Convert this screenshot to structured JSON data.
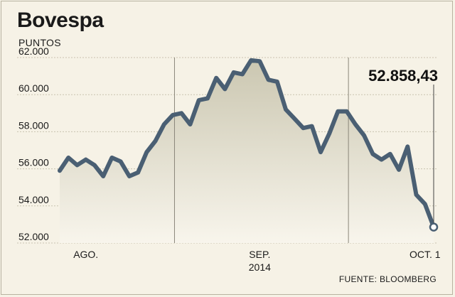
{
  "chart_data": {
    "type": "area",
    "title": "Bovespa",
    "ylabel": "PUNTOS",
    "source": "FUENTE: BLOOMBERG",
    "ylim": [
      52000,
      62000
    ],
    "yticks": [
      52000,
      54000,
      56000,
      58000,
      60000,
      62000
    ],
    "ytick_labels": [
      "52.000",
      "54.000",
      "56.000",
      "58.000",
      "60.000",
      "62.000"
    ],
    "x_labels": [
      {
        "text": "AGO.",
        "index": 3
      },
      {
        "text": "SEP.",
        "index": 23
      },
      {
        "text": "2014",
        "index": 23
      },
      {
        "text": "OCT. 1",
        "index": 42
      }
    ],
    "month_dividers": [
      13.2,
      33.2
    ],
    "last_value_label": "52.858,43",
    "grid": true,
    "colors": {
      "line": "#4a5f73",
      "fill_top": "#cfcbb6",
      "fill_bottom": "#f6f2e6",
      "grid": "#c9c3b0",
      "divider": "#8a867a"
    },
    "values": [
      55900,
      56600,
      56200,
      56500,
      56200,
      55600,
      56600,
      56400,
      55600,
      55800,
      56900,
      57500,
      58400,
      58900,
      59000,
      58400,
      59700,
      59800,
      60900,
      60300,
      61200,
      61100,
      61850,
      61800,
      60800,
      60700,
      59200,
      58700,
      58200,
      58300,
      56900,
      57900,
      59100,
      59100,
      58400,
      57800,
      56800,
      56500,
      56800,
      55950,
      57200,
      54600,
      54100,
      52858
    ]
  }
}
